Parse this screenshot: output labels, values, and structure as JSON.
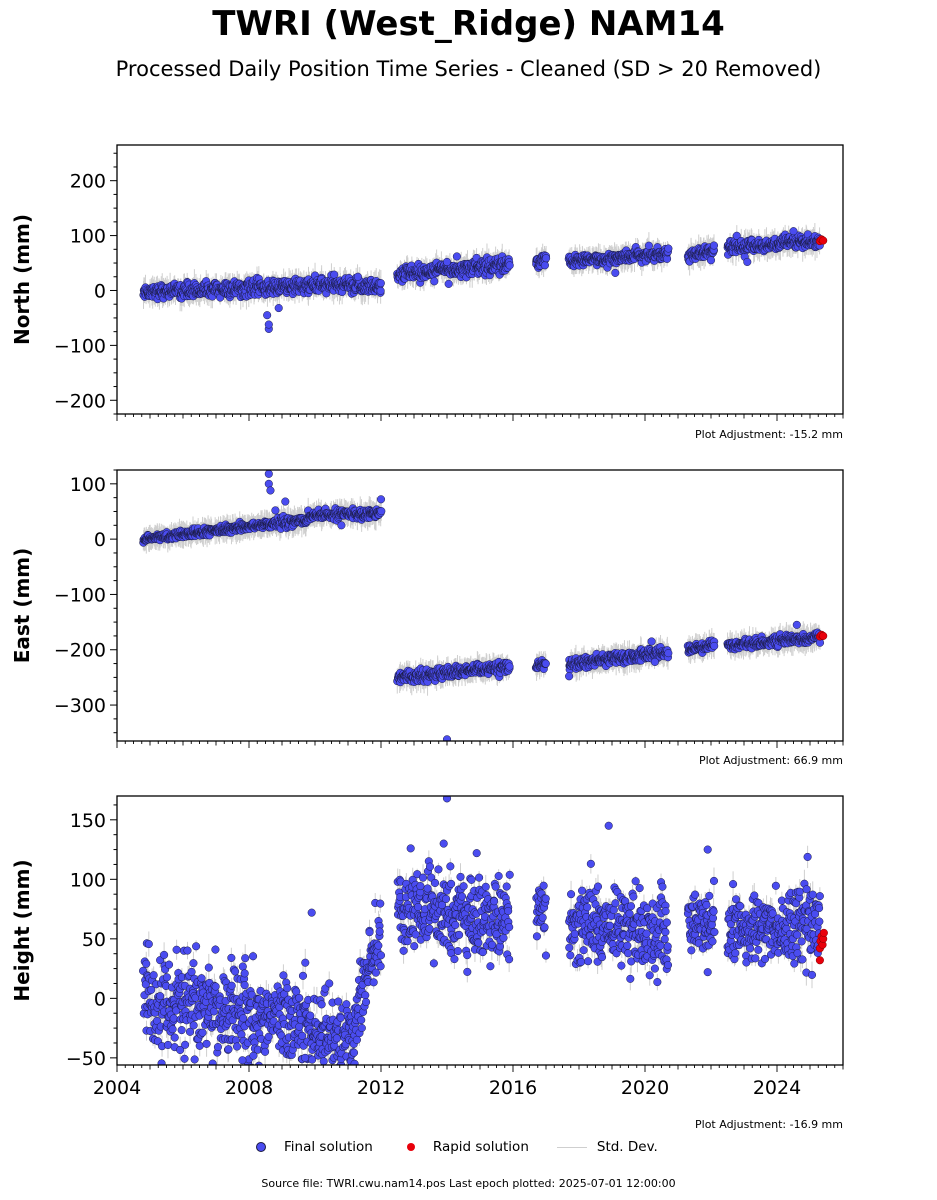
{
  "title": "TWRI (West_Ridge) NAM14",
  "subtitle": "Processed Daily Position Time Series - Cleaned (SD > 20 Removed)",
  "legend": {
    "final": "Final solution",
    "rapid": "Rapid solution",
    "std": "Std. Dev."
  },
  "source": "Source file: TWRI.cwu.nam14.pos  Last epoch plotted: 2025-07-01 12:00:00",
  "colors": {
    "final": "#4a4cf0",
    "final_edge": "#1a1a40",
    "rapid": "#e8000b",
    "std": "#cfcfcf"
  },
  "chart_data": [
    {
      "type": "scatter",
      "ylabel": "North (mm)",
      "adjustment": "Plot Adjustment: -15.2 mm",
      "xlim": [
        2004.0,
        2026.0
      ],
      "ylim": [
        -225,
        265
      ],
      "yticks": [
        -200,
        -100,
        0,
        100,
        200
      ],
      "yticklabels": [
        "−200",
        "−100",
        "0",
        "100",
        "200"
      ],
      "segments": [
        {
          "x": [
            2004.8,
            2007.3
          ],
          "y": [
            -2,
            2
          ],
          "noise": 6
        },
        {
          "x": [
            2007.3,
            2009.8
          ],
          "y": [
            2,
            8
          ],
          "noise": 7
        },
        {
          "x": [
            2009.8,
            2012.0
          ],
          "y": [
            10,
            8
          ],
          "noise": 7
        },
        {
          "x": [
            2012.5,
            2015.9
          ],
          "y": [
            30,
            48
          ],
          "noise": 7
        },
        {
          "x": [
            2016.7,
            2017.0
          ],
          "y": [
            50,
            58
          ],
          "noise": 5
        },
        {
          "x": [
            2017.7,
            2020.7
          ],
          "y": [
            52,
            68
          ],
          "noise": 5
        },
        {
          "x": [
            2021.3,
            2022.1
          ],
          "y": [
            65,
            72
          ],
          "noise": 5
        },
        {
          "x": [
            2022.5,
            2025.3
          ],
          "y": [
            78,
            90
          ],
          "noise": 6
        }
      ],
      "outliers": [
        [
          2008.6,
          -70
        ],
        [
          2008.6,
          -62
        ],
        [
          2008.55,
          -45
        ],
        [
          2008.9,
          -32
        ],
        [
          2011.3,
          25
        ],
        [
          2014.3,
          62
        ],
        [
          2014.0,
          52
        ],
        [
          2022.0,
          55
        ],
        [
          2023.1,
          52
        ],
        [
          2019.1,
          32
        ],
        [
          2024.5,
          108
        ],
        [
          2014.05,
          12
        ]
      ],
      "rapid": [
        [
          2025.3,
          90
        ],
        [
          2025.35,
          93
        ],
        [
          2025.4,
          91
        ]
      ]
    },
    {
      "type": "scatter",
      "ylabel": "East (mm)",
      "adjustment": "Plot Adjustment: 66.9 mm",
      "xlim": [
        2004.0,
        2026.0
      ],
      "ylim": [
        -365,
        125
      ],
      "yticks": [
        -300,
        -200,
        -100,
        0,
        100
      ],
      "yticklabels": [
        "−300",
        "−200",
        "−100",
        "0",
        "100"
      ],
      "segments": [
        {
          "x": [
            2004.8,
            2007.3
          ],
          "y": [
            0,
            18
          ],
          "noise": 3
        },
        {
          "x": [
            2007.3,
            2009.8
          ],
          "y": [
            18,
            35
          ],
          "noise": 4
        },
        {
          "x": [
            2009.8,
            2012.0
          ],
          "y": [
            42,
            48
          ],
          "noise": 4
        },
        {
          "x": [
            2012.5,
            2015.9
          ],
          "y": [
            -250,
            -232
          ],
          "noise": 5
        },
        {
          "x": [
            2016.7,
            2017.0
          ],
          "y": [
            -232,
            -224
          ],
          "noise": 4
        },
        {
          "x": [
            2017.7,
            2020.7
          ],
          "y": [
            -225,
            -205
          ],
          "noise": 5
        },
        {
          "x": [
            2021.3,
            2022.1
          ],
          "y": [
            -200,
            -190
          ],
          "noise": 4
        },
        {
          "x": [
            2022.5,
            2025.3
          ],
          "y": [
            -192,
            -178
          ],
          "noise": 4
        }
      ],
      "outliers": [
        [
          2008.6,
          118
        ],
        [
          2008.6,
          100
        ],
        [
          2008.65,
          88
        ],
        [
          2008.8,
          52
        ],
        [
          2009.1,
          68
        ],
        [
          2012.0,
          72
        ],
        [
          2010.8,
          25
        ],
        [
          2014.0,
          -362
        ],
        [
          2017.7,
          -248
        ],
        [
          2020.2,
          -185
        ],
        [
          2024.6,
          -155
        ],
        [
          2020.3,
          -222
        ]
      ],
      "rapid": [
        [
          2025.3,
          -176
        ],
        [
          2025.35,
          -173
        ],
        [
          2025.4,
          -175
        ]
      ]
    },
    {
      "type": "scatter",
      "ylabel": "Height (mm)",
      "adjustment": "Plot Adjustment: -16.9 mm",
      "xlim": [
        2004.0,
        2026.0
      ],
      "ylim": [
        -56,
        170
      ],
      "yticks": [
        -50,
        0,
        50,
        100,
        150
      ],
      "yticklabels": [
        "−50",
        "0",
        "50",
        "100",
        "150"
      ],
      "xticks": [
        2004,
        2008,
        2012,
        2016,
        2020,
        2024
      ],
      "xticklabels": [
        "2004",
        "2008",
        "2012",
        "2016",
        "2020",
        "2024"
      ],
      "segments": [
        {
          "x": [
            2004.8,
            2007.3
          ],
          "y": [
            0,
            -10
          ],
          "noise": 18
        },
        {
          "x": [
            2007.3,
            2009.8
          ],
          "y": [
            -10,
            -20
          ],
          "noise": 20
        },
        {
          "x": [
            2009.8,
            2011.2
          ],
          "y": [
            -25,
            -35
          ],
          "noise": 15
        },
        {
          "x": [
            2011.2,
            2012.0
          ],
          "y": [
            -15,
            55
          ],
          "noise": 14
        },
        {
          "x": [
            2012.5,
            2015.9
          ],
          "y": [
            75,
            65
          ],
          "noise": 16
        },
        {
          "x": [
            2016.7,
            2017.0
          ],
          "y": [
            68,
            72
          ],
          "noise": 12
        },
        {
          "x": [
            2017.7,
            2020.7
          ],
          "y": [
            65,
            55
          ],
          "noise": 16
        },
        {
          "x": [
            2021.3,
            2022.1
          ],
          "y": [
            58,
            72
          ],
          "noise": 15
        },
        {
          "x": [
            2022.5,
            2025.3
          ],
          "y": [
            58,
            62
          ],
          "noise": 15
        }
      ],
      "outliers": [
        [
          2014.0,
          168
        ],
        [
          2018.9,
          145
        ],
        [
          2013.9,
          130
        ],
        [
          2014.9,
          122
        ],
        [
          2021.9,
          125
        ],
        [
          2012.9,
          126
        ],
        [
          2011.2,
          -55
        ],
        [
          2020.3,
          25
        ],
        [
          2021.9,
          22
        ],
        [
          2009.7,
          -50
        ],
        [
          2007.8,
          -52
        ],
        [
          2009.9,
          72
        ]
      ],
      "rapid": [
        [
          2025.3,
          32
        ],
        [
          2025.3,
          42
        ],
        [
          2025.32,
          48
        ],
        [
          2025.35,
          52
        ],
        [
          2025.38,
          45
        ],
        [
          2025.4,
          50
        ],
        [
          2025.42,
          55
        ]
      ]
    }
  ]
}
